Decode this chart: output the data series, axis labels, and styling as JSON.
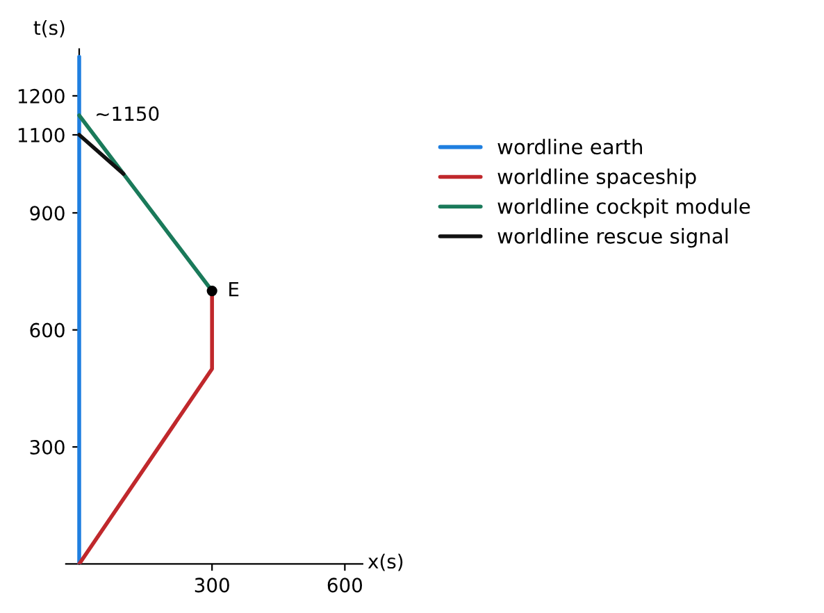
{
  "chart_data": {
    "type": "line",
    "xlabel": "x(s)",
    "ylabel": "t(s)",
    "xlim": [
      -30,
      640
    ],
    "ylim": [
      0,
      1320
    ],
    "xticks": [
      300,
      600
    ],
    "yticks": [
      300,
      600,
      900,
      1100,
      1200
    ],
    "grid": false,
    "legend": "right",
    "series": [
      {
        "name": "wordline earth",
        "color": "#1f7fe0",
        "x": [
          0,
          0
        ],
        "values": [
          0,
          1300
        ]
      },
      {
        "name": "worldline spaceship",
        "color": "#c0282c",
        "x": [
          0,
          300,
          300
        ],
        "values": [
          0,
          500,
          700
        ]
      },
      {
        "name": "worldline cockpit module",
        "color": "#1a7a5a",
        "x": [
          300,
          0
        ],
        "values": [
          700,
          1150
        ]
      },
      {
        "name": "worldline rescue signal",
        "color": "#111111",
        "x": [
          100,
          0
        ],
        "values": [
          1000,
          1100
        ]
      },
      {
        "type": "scatter",
        "color": "#000000",
        "x": [
          300
        ],
        "values": [
          700
        ]
      }
    ],
    "annotations": [
      {
        "text": "~1150",
        "x": 0,
        "y": 1150
      },
      {
        "text": "E",
        "x": 300,
        "y": 700
      }
    ]
  }
}
